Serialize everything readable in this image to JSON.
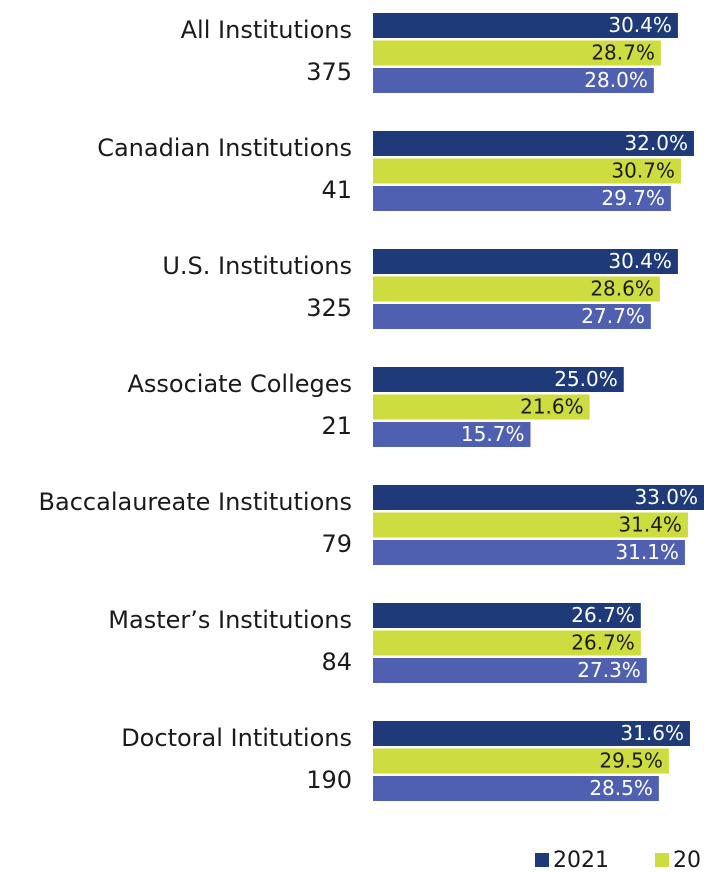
{
  "chart_data": {
    "type": "barh",
    "categories": [
      "All Institutions",
      "Canadian Institutions",
      "U.S. Institutions",
      "Associate Colleges",
      "Baccalaureate Institutions",
      "Master’s Institutions",
      "Doctoral Intitutions"
    ],
    "category_counts": [
      375,
      41,
      325,
      21,
      79,
      84,
      190
    ],
    "xlim": [
      0,
      33
    ],
    "series": [
      {
        "name": "2021",
        "color": "#1e3a78",
        "label_color": "#ffffff",
        "values": [
          30.4,
          32.0,
          30.4,
          25.0,
          33.0,
          26.7,
          31.6
        ],
        "value_labels": [
          "30.4%",
          "32.0%",
          "30.4%",
          "25.0%",
          "33.0%",
          "26.7%",
          "31.6%"
        ]
      },
      {
        "name": "20",
        "color": "#cddc3e",
        "label_color": "#1a1a1a",
        "values": [
          28.7,
          30.7,
          28.6,
          21.6,
          31.4,
          26.7,
          29.5
        ],
        "value_labels": [
          "28.7%",
          "30.7%",
          "28.6%",
          "21.6%",
          "31.4%",
          "26.7%",
          "29.5%"
        ]
      },
      {
        "color": "#5060b0",
        "label_color": "#ffffff",
        "values": [
          28.0,
          29.7,
          27.7,
          15.7,
          31.1,
          27.3,
          28.5
        ],
        "value_labels": [
          "28.0%",
          "29.7%",
          "27.7%",
          "15.7%",
          "31.1%",
          "27.3%",
          "28.5%"
        ]
      }
    ]
  }
}
